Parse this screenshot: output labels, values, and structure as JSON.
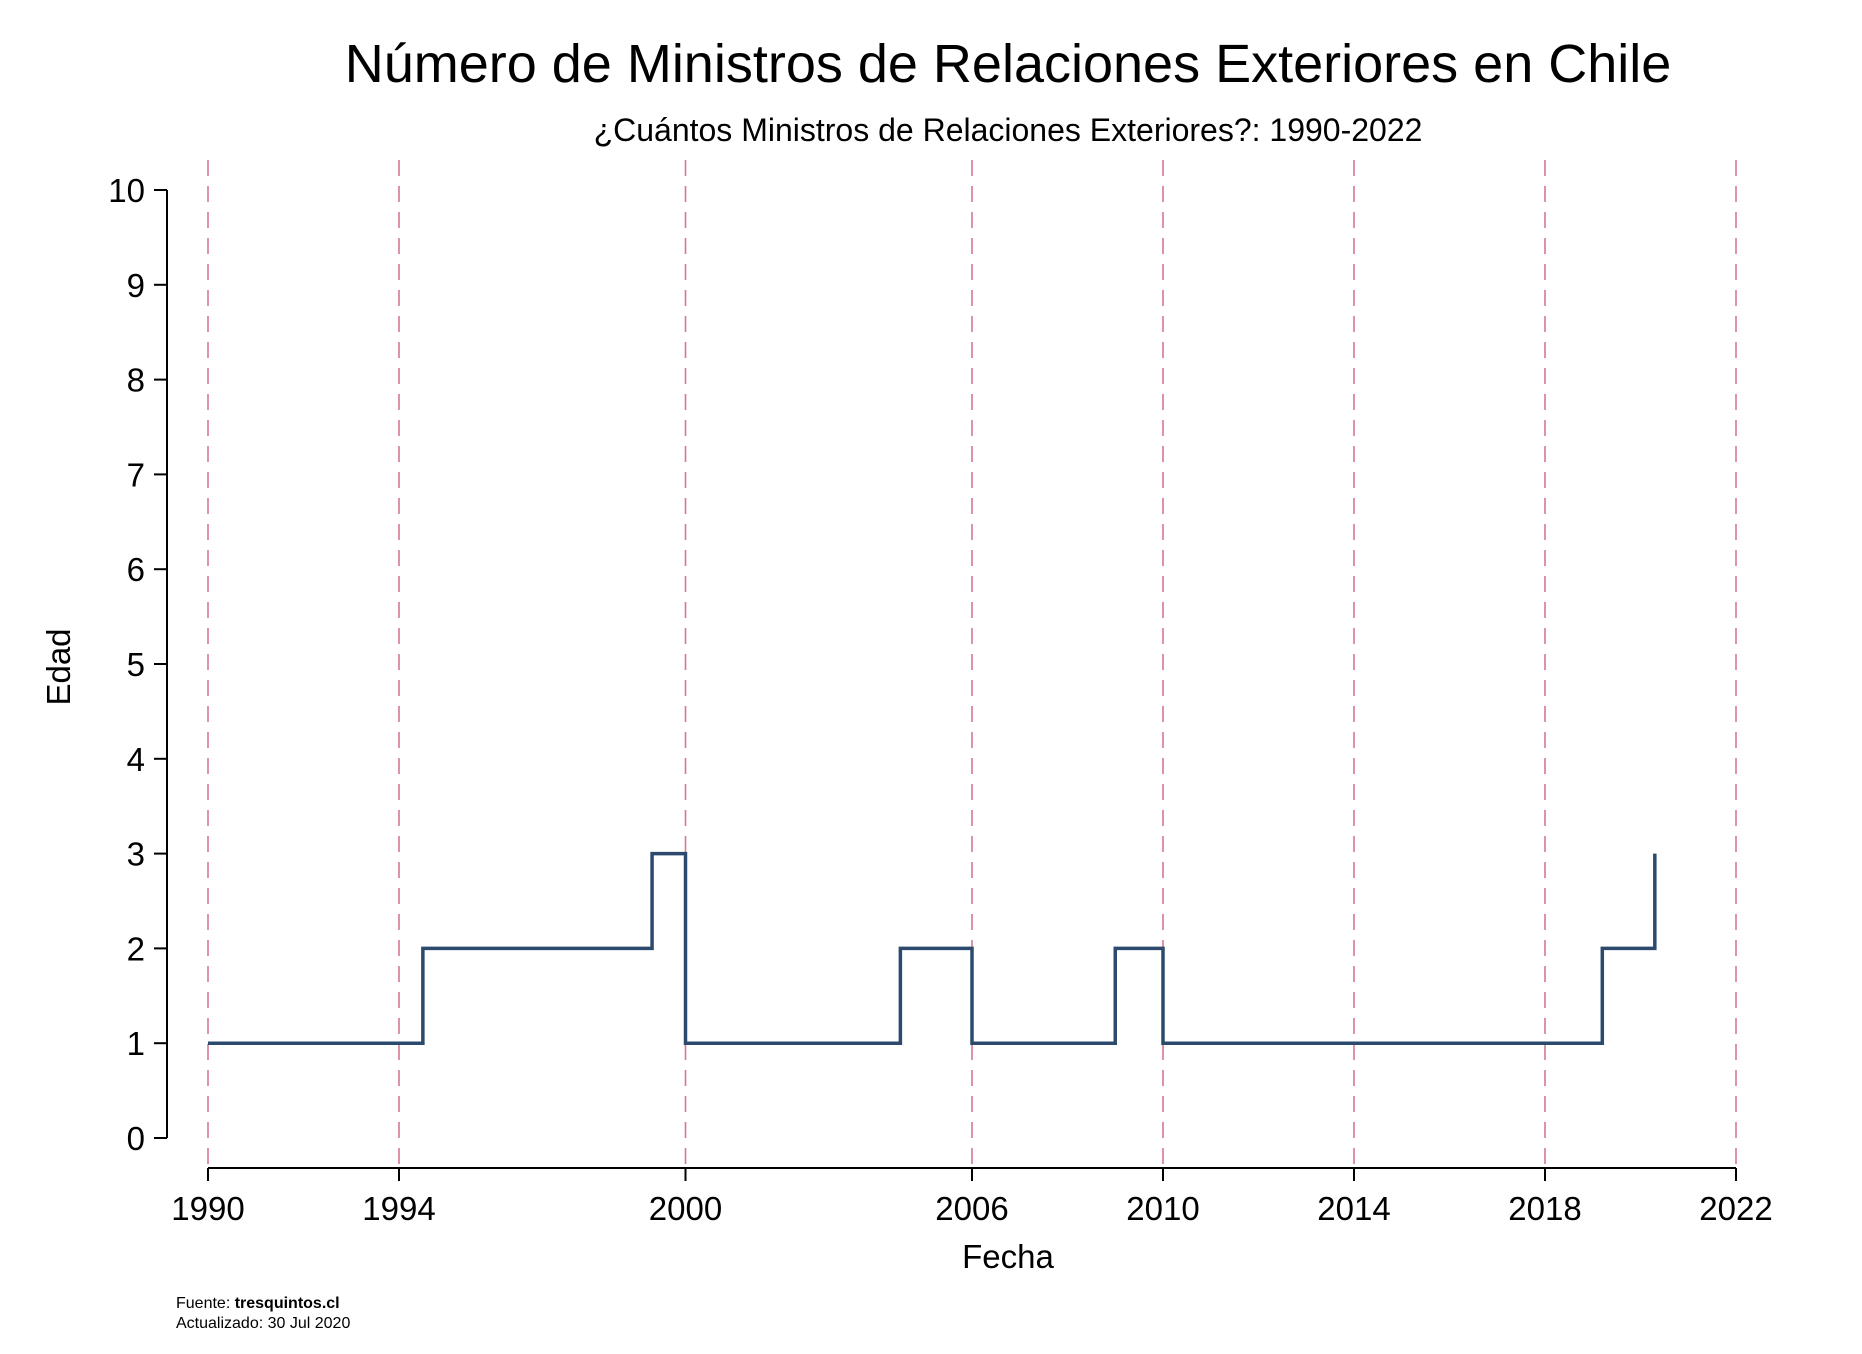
{
  "chart_data": {
    "type": "line",
    "step": true,
    "title": "Número de Ministros de Relaciones Exteriores en Chile",
    "subtitle": "¿Cuántos Ministros de Relaciones Exteriores?: 1990-2022",
    "xlabel": "Fecha",
    "ylabel": "Edad",
    "xlim": [
      1990,
      2022
    ],
    "ylim": [
      0,
      10
    ],
    "x_ticks": [
      "1990",
      "1994",
      "2000",
      "2006",
      "2010",
      "2014",
      "2018",
      "2022"
    ],
    "y_ticks": [
      "0",
      "1",
      "2",
      "3",
      "4",
      "5",
      "6",
      "7",
      "8",
      "9",
      "10"
    ],
    "vlines": [
      1990,
      1994,
      2000,
      2006,
      2010,
      2014,
      2018,
      2022
    ],
    "vline_style": "dashed",
    "grid": false,
    "series": [
      {
        "color": "#2b4a6e",
        "points": [
          {
            "x": 1990.0,
            "y": 1
          },
          {
            "x": 1994.5,
            "y": 2
          },
          {
            "x": 1999.3,
            "y": 3
          },
          {
            "x": 2000.0,
            "y": 1
          },
          {
            "x": 2004.5,
            "y": 2
          },
          {
            "x": 2006.0,
            "y": 1
          },
          {
            "x": 2009.0,
            "y": 2
          },
          {
            "x": 2010.0,
            "y": 1
          },
          {
            "x": 2019.2,
            "y": 2
          },
          {
            "x": 2020.3,
            "y": 3
          }
        ]
      }
    ]
  },
  "colors": {
    "line": "#2b4a6e",
    "vline": "#d4798f",
    "axis": "#000000"
  },
  "footer": {
    "source_label": "Fuente: ",
    "source_value": "tresquintos.cl",
    "updated": "Actualizado: 30 Jul 2020"
  }
}
